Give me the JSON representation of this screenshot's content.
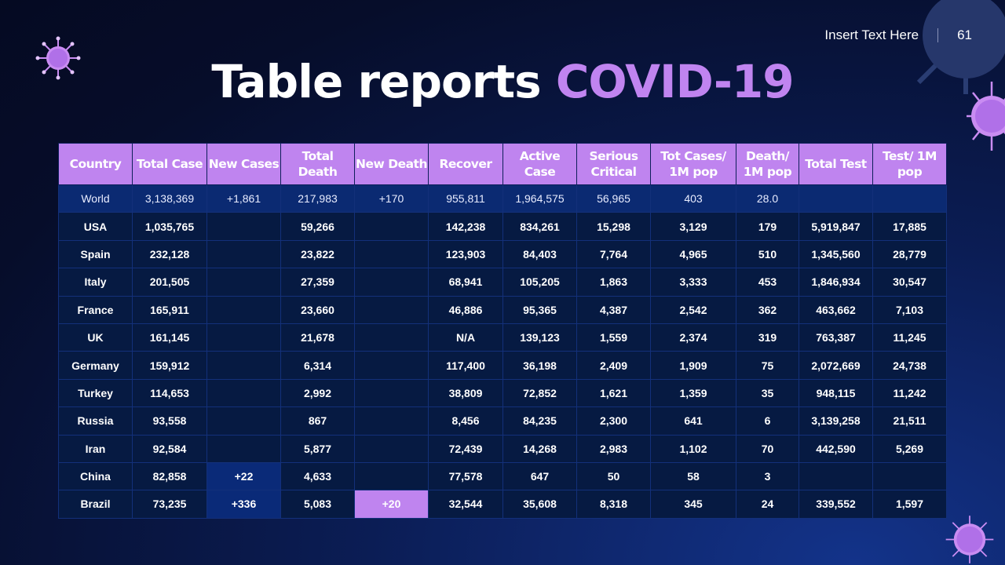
{
  "header": {
    "text": "Insert Text Here",
    "page": "61"
  },
  "title": {
    "main": "Table reports ",
    "highlight": "COVID-19"
  },
  "colors": {
    "accent": "#bf84ef",
    "world_row": "#0b2a72",
    "cell": "#061a42"
  },
  "table": {
    "columns": [
      "Country",
      "Total Case",
      "New Cases",
      "Total Death",
      "New Death",
      "Recover",
      "Active Case",
      "Serious Critical",
      "Tot Cases/ 1M pop",
      "Death/ 1M pop",
      "Total Test",
      "Test/ 1M pop"
    ],
    "rows": [
      [
        "World",
        "3,138,369",
        "+1,861",
        "217,983",
        "+170",
        "955,811",
        "1,964,575",
        "56,965",
        "403",
        "28.0",
        "",
        ""
      ],
      [
        "USA",
        "1,035,765",
        "",
        "59,266",
        "",
        "142,238",
        "834,261",
        "15,298",
        "3,129",
        "179",
        "5,919,847",
        "17,885"
      ],
      [
        "Spain",
        "232,128",
        "",
        "23,822",
        "",
        "123,903",
        "84,403",
        "7,764",
        "4,965",
        "510",
        "1,345,560",
        "28,779"
      ],
      [
        "Italy",
        "201,505",
        "",
        "27,359",
        "",
        "68,941",
        "105,205",
        "1,863",
        "3,333",
        "453",
        "1,846,934",
        "30,547"
      ],
      [
        "France",
        "165,911",
        "",
        "23,660",
        "",
        "46,886",
        "95,365",
        "4,387",
        "2,542",
        "362",
        "463,662",
        "7,103"
      ],
      [
        "UK",
        "161,145",
        "",
        "21,678",
        "",
        "N/A",
        "139,123",
        "1,559",
        "2,374",
        "319",
        "763,387",
        "11,245"
      ],
      [
        "Germany",
        "159,912",
        "",
        "6,314",
        "",
        "117,400",
        "36,198",
        "2,409",
        "1,909",
        "75",
        "2,072,669",
        "24,738"
      ],
      [
        "Turkey",
        "114,653",
        "",
        "2,992",
        "",
        "38,809",
        "72,852",
        "1,621",
        "1,359",
        "35",
        "948,115",
        "11,242"
      ],
      [
        "Russia",
        "93,558",
        "",
        "867",
        "",
        "8,456",
        "84,235",
        "2,300",
        "641",
        "6",
        "3,139,258",
        "21,511"
      ],
      [
        "Iran",
        "92,584",
        "",
        "5,877",
        "",
        "72,439",
        "14,268",
        "2,983",
        "1,102",
        "70",
        "442,590",
        "5,269"
      ],
      [
        "China",
        "82,858",
        "+22",
        "4,633",
        "",
        "77,578",
        "647",
        "50",
        "58",
        "3",
        "",
        ""
      ],
      [
        "Brazil",
        "73,235",
        "+336",
        "5,083",
        "+20",
        "32,544",
        "35,608",
        "8,318",
        "345",
        "24",
        "339,552",
        "1,597"
      ]
    ]
  }
}
